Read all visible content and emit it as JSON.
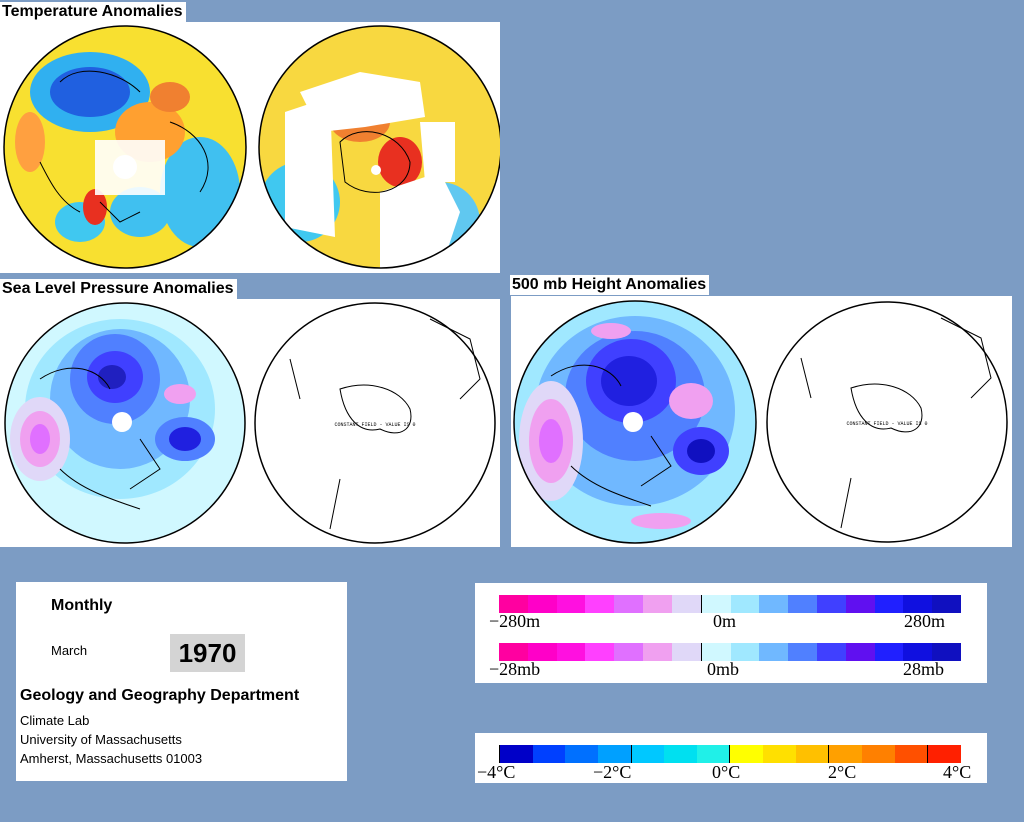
{
  "titles": {
    "temperature": "Temperature Anomalies",
    "slp": "Sea Level Pressure Anomalies",
    "height": "500 mb Height Anomalies"
  },
  "constant_field_label": "CONSTANT FIELD - VALUE IS 0",
  "info": {
    "period": "Monthly",
    "month": "March",
    "year": "1970",
    "department": "Geology and Geography Department",
    "lines": [
      "Climate Lab",
      "University of Massachusetts",
      "Amherst, Massachusetts 01003"
    ]
  },
  "legend_height": {
    "labels": [
      "−280m",
      "0m",
      "280m"
    ],
    "colors": [
      "#ff00a0",
      "#ff00c8",
      "#ff10e0",
      "#ff40ff",
      "#e070ff",
      "#f0a0f0",
      "#e0d8f8",
      "#d0f8ff",
      "#a0e8ff",
      "#70b8ff",
      "#5080ff",
      "#4040ff",
      "#6010f0",
      "#2020ff",
      "#1010e0",
      "#1010c0"
    ]
  },
  "legend_pressure": {
    "labels": [
      "−28mb",
      "0mb",
      "28mb"
    ]
  },
  "legend_temp": {
    "labels": [
      "−4°C",
      "−2°C",
      "0°C",
      "2°C",
      "4°C"
    ],
    "colors": [
      "#0000c8",
      "#0040ff",
      "#0070ff",
      "#00a0ff",
      "#00c8ff",
      "#00e0f0",
      "#20f0e8",
      "#ffff00",
      "#ffe000",
      "#ffc000",
      "#ffa000",
      "#ff8000",
      "#ff5000",
      "#ff2000"
    ]
  },
  "colors": {
    "background": "#7c9cc4",
    "warm": "#ff8000",
    "cold": "#1030e0"
  }
}
